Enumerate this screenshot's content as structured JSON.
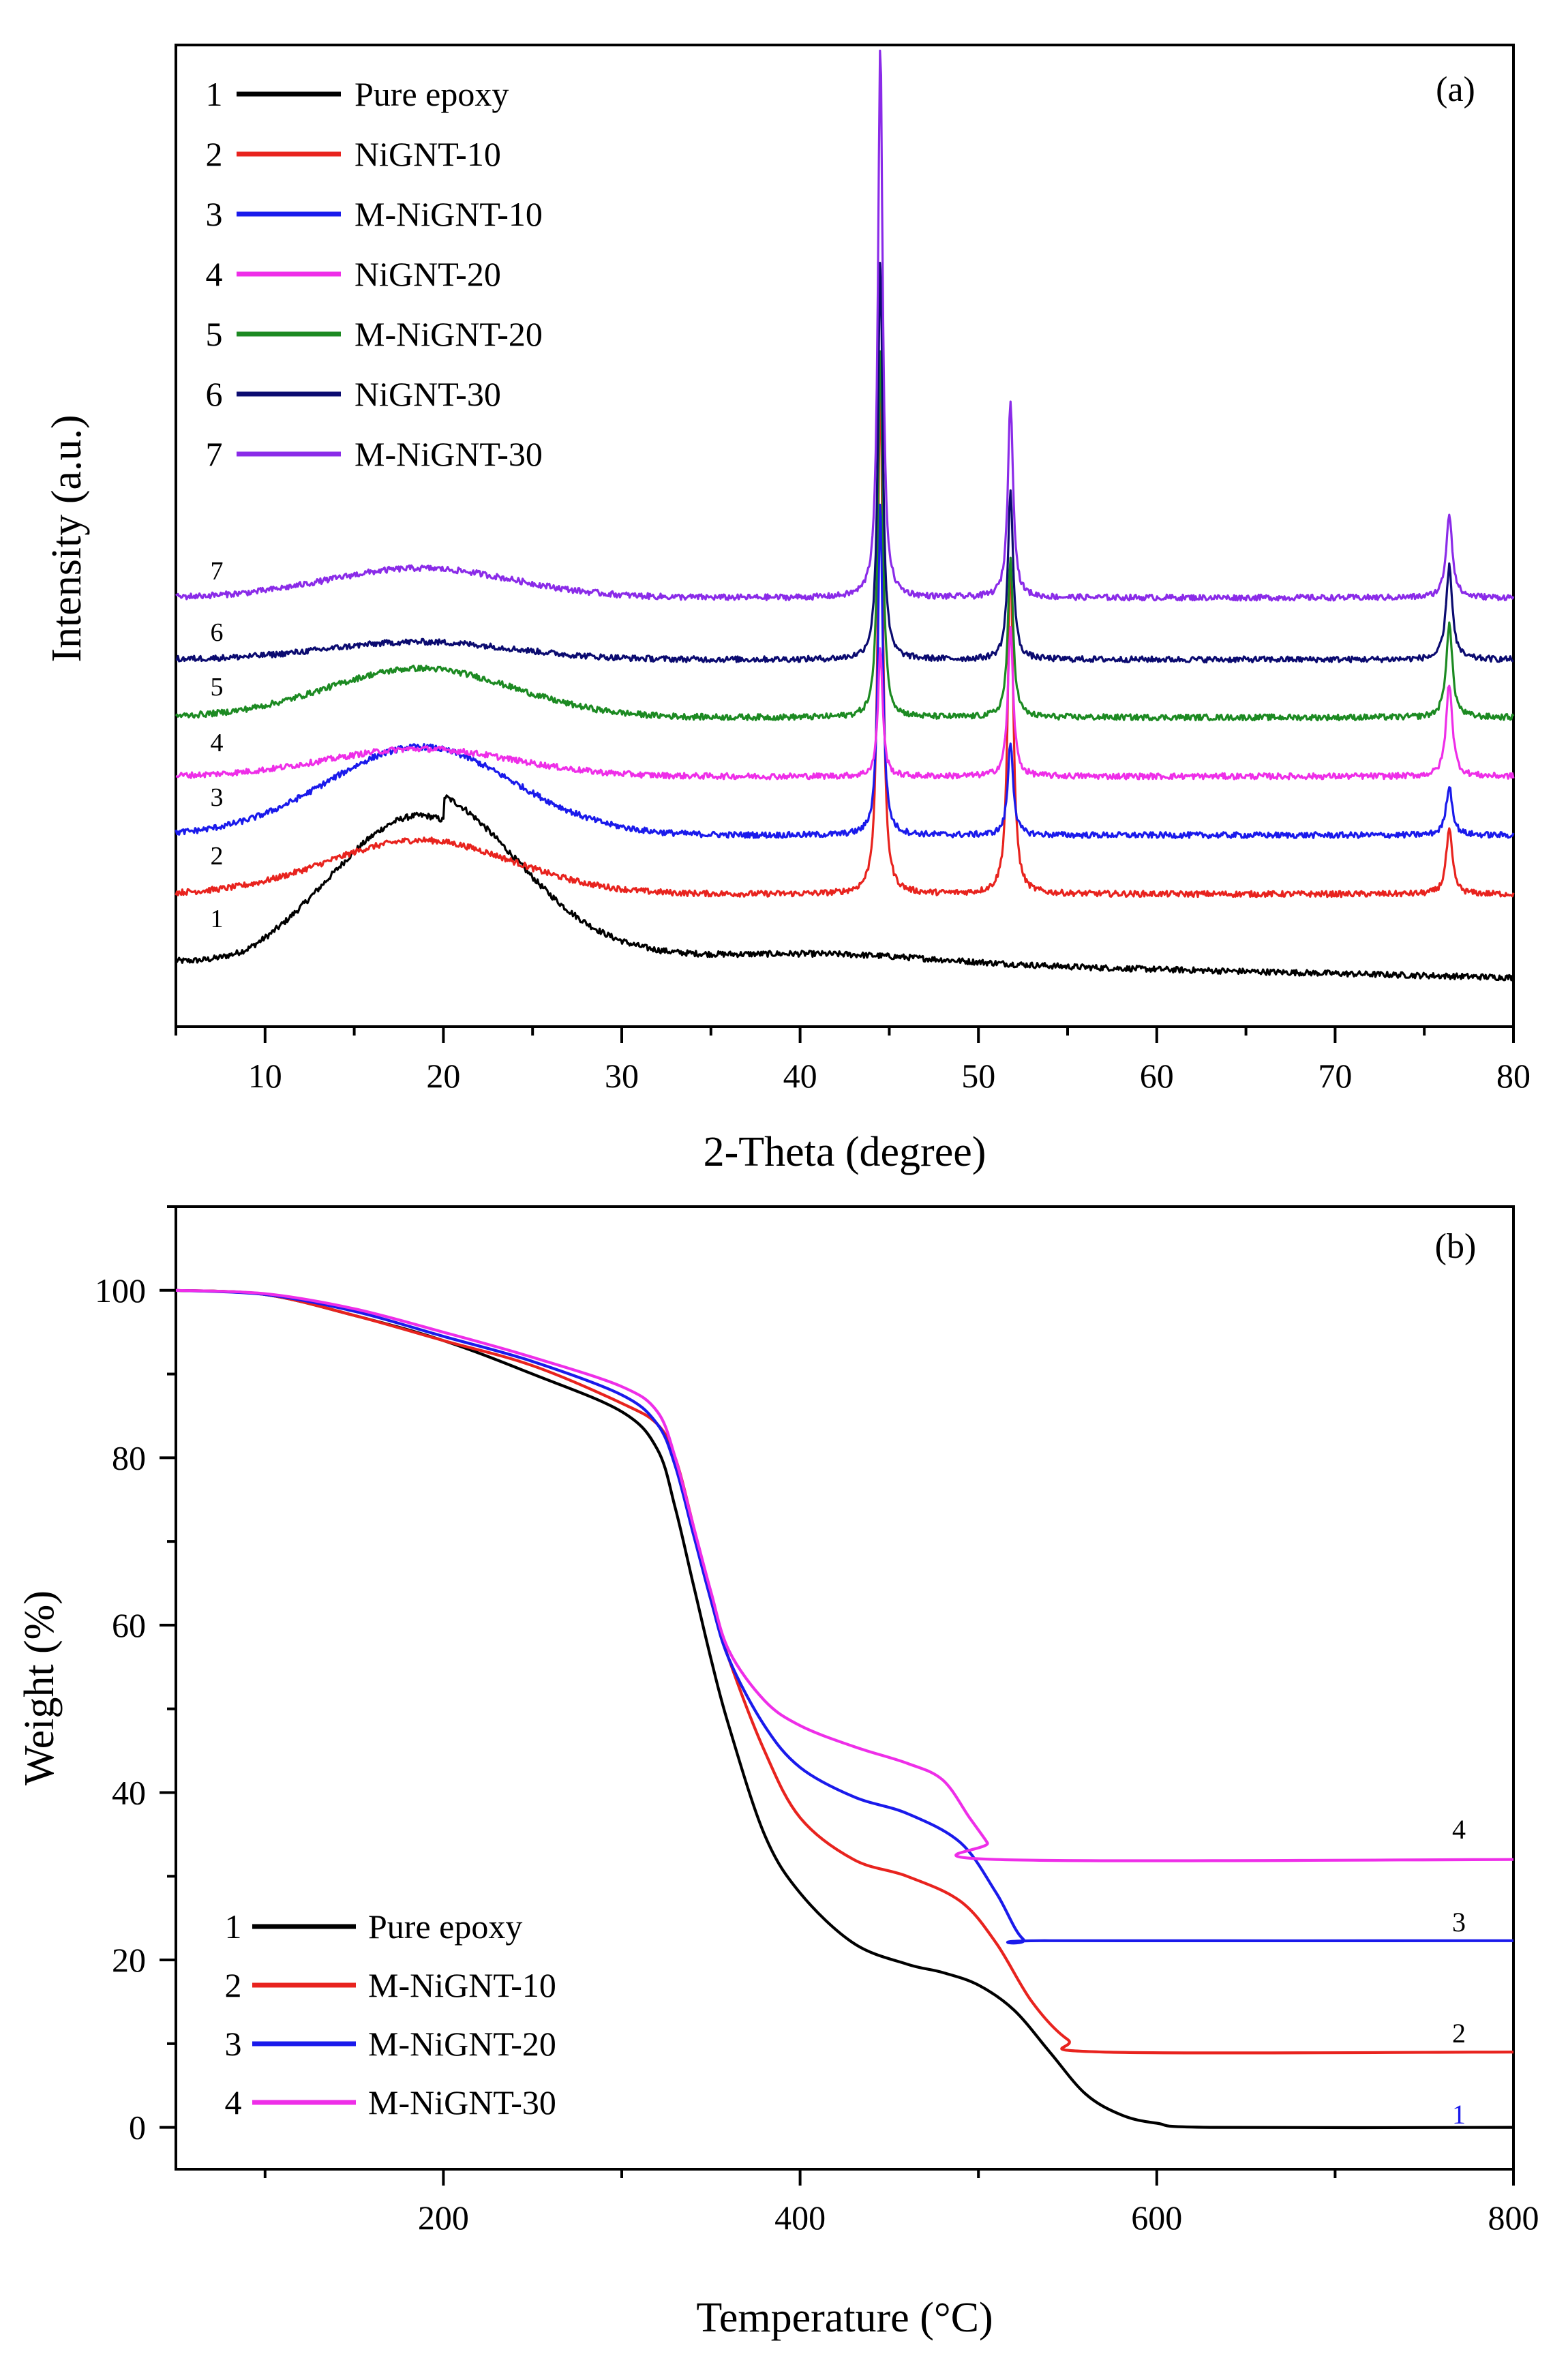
{
  "chart_data": [
    {
      "panel": "(a)",
      "type": "line",
      "xlabel": "2-Theta (degree)",
      "ylabel": "Intensity (a.u.)",
      "xlim": [
        5,
        80
      ],
      "xticks": [
        10,
        20,
        30,
        40,
        50,
        60,
        70,
        80
      ],
      "y_ticks_shown": false,
      "peaks_deg": [
        44.5,
        51.8,
        76.4
      ],
      "series": [
        {
          "id": "1",
          "name": "Pure epoxy",
          "color": "#000000",
          "baseline": 0.05,
          "hump": {
            "center": 18.7,
            "height": 0.165,
            "width": 5.2
          },
          "peaks": [],
          "tail": 0.025
        },
        {
          "id": "2",
          "name": "NiGNT-10",
          "color": "#e8231e",
          "baseline": 0.135,
          "hump": {
            "center": 18.7,
            "height": 0.055,
            "width": 5.2
          },
          "peaks": [
            0.54,
            0.34,
            0.065
          ]
        },
        {
          "id": "3",
          "name": "M-NiGNT-10",
          "color": "#1a1aeb",
          "baseline": 0.195,
          "hump": {
            "center": 18.7,
            "height": 0.09,
            "width": 5.2
          },
          "peaks": [
            0.34,
            0.095,
            0.05
          ]
        },
        {
          "id": "4",
          "name": "NiGNT-20",
          "color": "#ee2ee8",
          "baseline": 0.255,
          "hump": {
            "center": 18.7,
            "height": 0.028,
            "width": 5.2
          },
          "peaks": [
            0.13,
            0.15,
            0.095
          ]
        },
        {
          "id": "5",
          "name": "M-NiGNT-20",
          "color": "#1c8a22",
          "baseline": 0.315,
          "hump": {
            "center": 18.7,
            "height": 0.05,
            "width": 5.2
          },
          "peaks": [
            0.38,
            0.16,
            0.095
          ]
        },
        {
          "id": "6",
          "name": "NiGNT-30",
          "color": "#0b0b70",
          "baseline": 0.374,
          "hump": {
            "center": 18.7,
            "height": 0.018,
            "width": 5.2
          },
          "peaks": [
            0.41,
            0.17,
            0.095
          ]
        },
        {
          "id": "7",
          "name": "M-NiGNT-30",
          "color": "#8a2be8",
          "baseline": 0.437,
          "hump": {
            "center": 18.7,
            "height": 0.03,
            "width": 5.2
          },
          "peaks": [
            0.565,
            0.2,
            0.085
          ]
        }
      ]
    },
    {
      "panel": "(b)",
      "type": "line",
      "xlabel": "Temperature (°C)",
      "ylabel": "Weight (%)",
      "xlim": [
        50,
        800
      ],
      "ylim": [
        -5,
        110
      ],
      "xticks": [
        200,
        400,
        600,
        800
      ],
      "yticks": [
        0,
        20,
        40,
        60,
        80,
        100
      ],
      "series": [
        {
          "id": "1",
          "name": "Pure epoxy",
          "color": "#000000",
          "points": [
            [
              50,
              100
            ],
            [
              100,
              99.5
            ],
            [
              150,
              97
            ],
            [
              200,
              94
            ],
            [
              250,
              90
            ],
            [
              300,
              85.5
            ],
            [
              320,
              81
            ],
            [
              330,
              74
            ],
            [
              340,
              65
            ],
            [
              350,
              56
            ],
            [
              360,
              48
            ],
            [
              380,
              35
            ],
            [
              400,
              28
            ],
            [
              430,
              22
            ],
            [
              460,
              19.5
            ],
            [
              480,
              18.5
            ],
            [
              500,
              17
            ],
            [
              520,
              14
            ],
            [
              540,
              9
            ],
            [
              560,
              4
            ],
            [
              580,
              1.5
            ],
            [
              600,
              0.5
            ],
            [
              630,
              0
            ],
            [
              800,
              0
            ]
          ]
        },
        {
          "id": "2",
          "name": "M-NiGNT-10",
          "color": "#e8231e",
          "points": [
            [
              50,
              100
            ],
            [
              100,
              99.5
            ],
            [
              150,
              97
            ],
            [
              200,
              94
            ],
            [
              250,
              91
            ],
            [
              300,
              86.5
            ],
            [
              320,
              84
            ],
            [
              330,
              80
            ],
            [
              340,
              72
            ],
            [
              350,
              63
            ],
            [
              360,
              56
            ],
            [
              380,
              45
            ],
            [
              400,
              37
            ],
            [
              430,
              32
            ],
            [
              460,
              30
            ],
            [
              490,
              27
            ],
            [
              510,
              22
            ],
            [
              530,
              15
            ],
            [
              550,
              10.5
            ],
            [
              570,
              9
            ],
            [
              800,
              9
            ]
          ]
        },
        {
          "id": "3",
          "name": "M-NiGNT-20",
          "color": "#1a1aeb",
          "points": [
            [
              50,
              100
            ],
            [
              100,
              99.5
            ],
            [
              150,
              97.5
            ],
            [
              200,
              94.5
            ],
            [
              250,
              91.5
            ],
            [
              300,
              87.5
            ],
            [
              320,
              84
            ],
            [
              330,
              79
            ],
            [
              340,
              71
            ],
            [
              350,
              63
            ],
            [
              360,
              56
            ],
            [
              380,
              48
            ],
            [
              400,
              43
            ],
            [
              430,
              39.5
            ],
            [
              460,
              37.5
            ],
            [
              490,
              34
            ],
            [
              510,
              28
            ],
            [
              525,
              22.5
            ],
            [
              540,
              22.3
            ],
            [
              800,
              22.3
            ]
          ]
        },
        {
          "id": "4",
          "name": "M-NiGNT-30",
          "color": "#ee2ee8",
          "points": [
            [
              50,
              100
            ],
            [
              100,
              99.6
            ],
            [
              150,
              97.8
            ],
            [
              200,
              95
            ],
            [
              250,
              92
            ],
            [
              300,
              88.5
            ],
            [
              320,
              85.5
            ],
            [
              330,
              80
            ],
            [
              340,
              72
            ],
            [
              350,
              64
            ],
            [
              360,
              57
            ],
            [
              380,
              51
            ],
            [
              400,
              48
            ],
            [
              430,
              45.5
            ],
            [
              460,
              43.5
            ],
            [
              480,
              41.5
            ],
            [
              495,
              37
            ],
            [
              505,
              34
            ],
            [
              510,
              32
            ],
            [
              800,
              32
            ]
          ]
        }
      ]
    }
  ],
  "panel_a": {
    "label": "(a)",
    "xlabel": "2-Theta (degree)",
    "ylabel": "Intensity (a.u.)",
    "legend": [
      {
        "num": "1",
        "name": "Pure epoxy"
      },
      {
        "num": "2",
        "name": "NiGNT-10"
      },
      {
        "num": "3",
        "name": "M-NiGNT-10"
      },
      {
        "num": "4",
        "name": "NiGNT-20"
      },
      {
        "num": "5",
        "name": "M-NiGNT-20"
      },
      {
        "num": "6",
        "name": "NiGNT-30"
      },
      {
        "num": "7",
        "name": "M-NiGNT-30"
      }
    ],
    "curve_labels": [
      "1",
      "2",
      "3",
      "4",
      "5",
      "6",
      "7"
    ]
  },
  "panel_b": {
    "label": "(b)",
    "xlabel": "Temperature (°C)",
    "ylabel": "Weight (%)",
    "legend": [
      {
        "num": "1",
        "name": "Pure epoxy"
      },
      {
        "num": "2",
        "name": "M-NiGNT-10"
      },
      {
        "num": "3",
        "name": "M-NiGNT-20"
      },
      {
        "num": "4",
        "name": "M-NiGNT-30"
      }
    ],
    "curve_labels": [
      "1",
      "2",
      "3",
      "4"
    ],
    "curve_label_colors": [
      "#1a1aeb",
      "#000000",
      "#000000",
      "#000000"
    ]
  }
}
